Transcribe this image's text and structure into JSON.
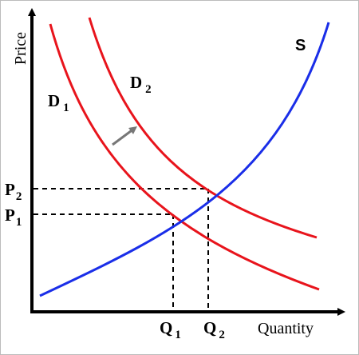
{
  "axes": {
    "y_label": "Price",
    "x_label": "Quantity"
  },
  "curves": [
    {
      "label": "D",
      "subscript": "1"
    },
    {
      "label": "D",
      "subscript": "2"
    },
    {
      "label": "S"
    }
  ],
  "prices": [
    {
      "label": "P",
      "subscript": "1"
    },
    {
      "label": "P",
      "subscript": "2"
    }
  ],
  "quantities": [
    {
      "label": "Q",
      "subscript": "1"
    },
    {
      "label": "Q",
      "subscript": "2"
    }
  ]
}
